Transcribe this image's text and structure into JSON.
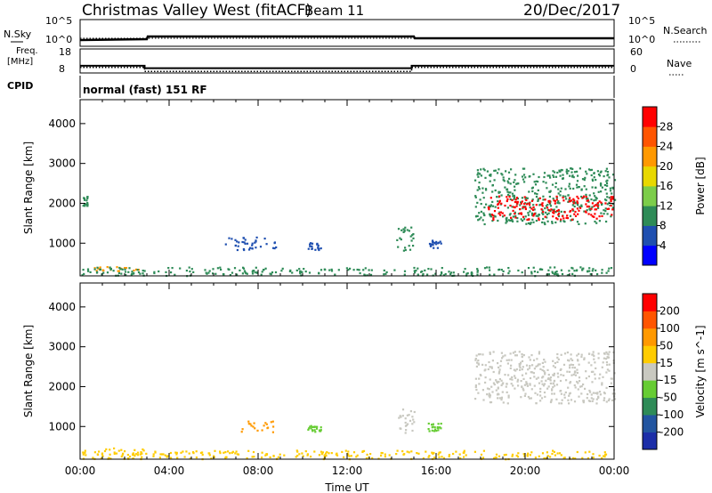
{
  "header": {
    "title": "Christmas Valley West (fitACF)",
    "beam": "Beam 11",
    "date": "20/Dec/2017"
  },
  "status_panels": {
    "nsky_label": "N.Sky",
    "nsky_ticks": [
      "10^5",
      "10^0"
    ],
    "nsearch_label": "N.Search",
    "nsearch_ticks": [
      "10^5",
      "10^0"
    ],
    "freq_label_line1": "Freq.",
    "freq_label_line2": "[MHz]",
    "freq_ticks": [
      "18",
      "8"
    ],
    "nave_label": "Nave",
    "nave_ticks": [
      "60",
      "0"
    ],
    "cpid_label": "CPID",
    "cpid_text": "normal (fast) 151 RF"
  },
  "chart_data": [
    {
      "type": "heatmap",
      "name": "power",
      "ylabel": "Slant Range [km]",
      "xlabel": "",
      "ylim": [
        180,
        4600
      ],
      "yticks": [
        1000,
        2000,
        3000,
        4000
      ],
      "colorbar_label": "Power [dB]",
      "colorbar_ticks": [
        "4",
        "8",
        "12",
        "16",
        "20",
        "24",
        "28"
      ],
      "colorbar_colors": [
        "#0000ff",
        "#1f4fb0",
        "#2e8b57",
        "#7ccd4a",
        "#e8d800",
        "#ff9900",
        "#ff5500",
        "#ff0000"
      ],
      "blobs": [
        {
          "t0": 0.1,
          "t1": 0.3,
          "r0": 1950,
          "r1": 2200,
          "color": "#2e8b57"
        },
        {
          "t0": 0.5,
          "t1": 2.6,
          "r0": 310,
          "r1": 470,
          "color": "#ff9900"
        },
        {
          "t0": 0.0,
          "t1": 24.0,
          "r0": 200,
          "r1": 420,
          "color": "#2e8b57"
        },
        {
          "t0": 6.5,
          "t1": 8.8,
          "r0": 850,
          "r1": 1180,
          "color": "#1f4fb0"
        },
        {
          "t0": 10.2,
          "t1": 10.8,
          "r0": 850,
          "r1": 1050,
          "color": "#1f4fb0"
        },
        {
          "t0": 14.2,
          "t1": 15.0,
          "r0": 830,
          "r1": 1450,
          "color": "#2e8b57"
        },
        {
          "t0": 15.6,
          "t1": 16.2,
          "r0": 900,
          "r1": 1100,
          "color": "#1f4fb0"
        },
        {
          "t0": 17.7,
          "t1": 24.0,
          "r0": 1500,
          "r1": 2900,
          "color": "#2e8b57"
        },
        {
          "t0": 18.3,
          "t1": 24.0,
          "r0": 1600,
          "r1": 2200,
          "color": "#ff0000"
        }
      ]
    },
    {
      "type": "heatmap",
      "name": "velocity",
      "ylabel": "Slant Range [km]",
      "xlabel": "Time UT",
      "ylim": [
        180,
        4600
      ],
      "yticks": [
        1000,
        2000,
        3000,
        4000
      ],
      "xticks": [
        "00:00",
        "04:00",
        "08:00",
        "12:00",
        "16:00",
        "20:00",
        "00:00"
      ],
      "colorbar_label": "Velocity [m s^-1]",
      "colorbar_ticks": [
        "200",
        "100",
        "50",
        "15",
        "-15",
        "-50",
        "-100",
        "-200"
      ],
      "colorbar_colors": [
        "#1c2ea8",
        "#2255a0",
        "#2e8b57",
        "#66cc33",
        "#c8c8c0",
        "#ffcc00",
        "#ff9900",
        "#ff5500",
        "#ff0000"
      ],
      "blobs": [
        {
          "t0": 0.5,
          "t1": 3.0,
          "r0": 310,
          "r1": 480,
          "color": "#ffcc00"
        },
        {
          "t0": 0.0,
          "t1": 24.0,
          "r0": 200,
          "r1": 420,
          "color": "#ffcc00"
        },
        {
          "t0": 7.2,
          "t1": 8.7,
          "r0": 880,
          "r1": 1150,
          "color": "#ff9900"
        },
        {
          "t0": 10.2,
          "t1": 10.8,
          "r0": 880,
          "r1": 1050,
          "color": "#66cc33"
        },
        {
          "t0": 14.2,
          "t1": 15.0,
          "r0": 850,
          "r1": 1450,
          "color": "#c8c8c0"
        },
        {
          "t0": 15.6,
          "t1": 16.2,
          "r0": 900,
          "r1": 1100,
          "color": "#66cc33"
        },
        {
          "t0": 17.7,
          "t1": 24.0,
          "r0": 1600,
          "r1": 2900,
          "color": "#c8c8c0"
        }
      ]
    }
  ],
  "freq_series": {
    "freq_mhz": [
      {
        "t": 0,
        "v": 11.0
      },
      {
        "t": 2.9,
        "v": 11.0
      },
      {
        "t": 2.9,
        "v": 10.0
      },
      {
        "t": 14.9,
        "v": 10.0
      },
      {
        "t": 14.9,
        "v": 11.0
      },
      {
        "t": 24,
        "v": 11.0
      }
    ],
    "nave": [
      {
        "t": 0,
        "v": 14
      },
      {
        "t": 2.9,
        "v": 14
      },
      {
        "t": 2.9,
        "v": 4
      },
      {
        "t": 14.9,
        "v": 4
      },
      {
        "t": 14.9,
        "v": 14
      },
      {
        "t": 24,
        "v": 14
      }
    ]
  }
}
